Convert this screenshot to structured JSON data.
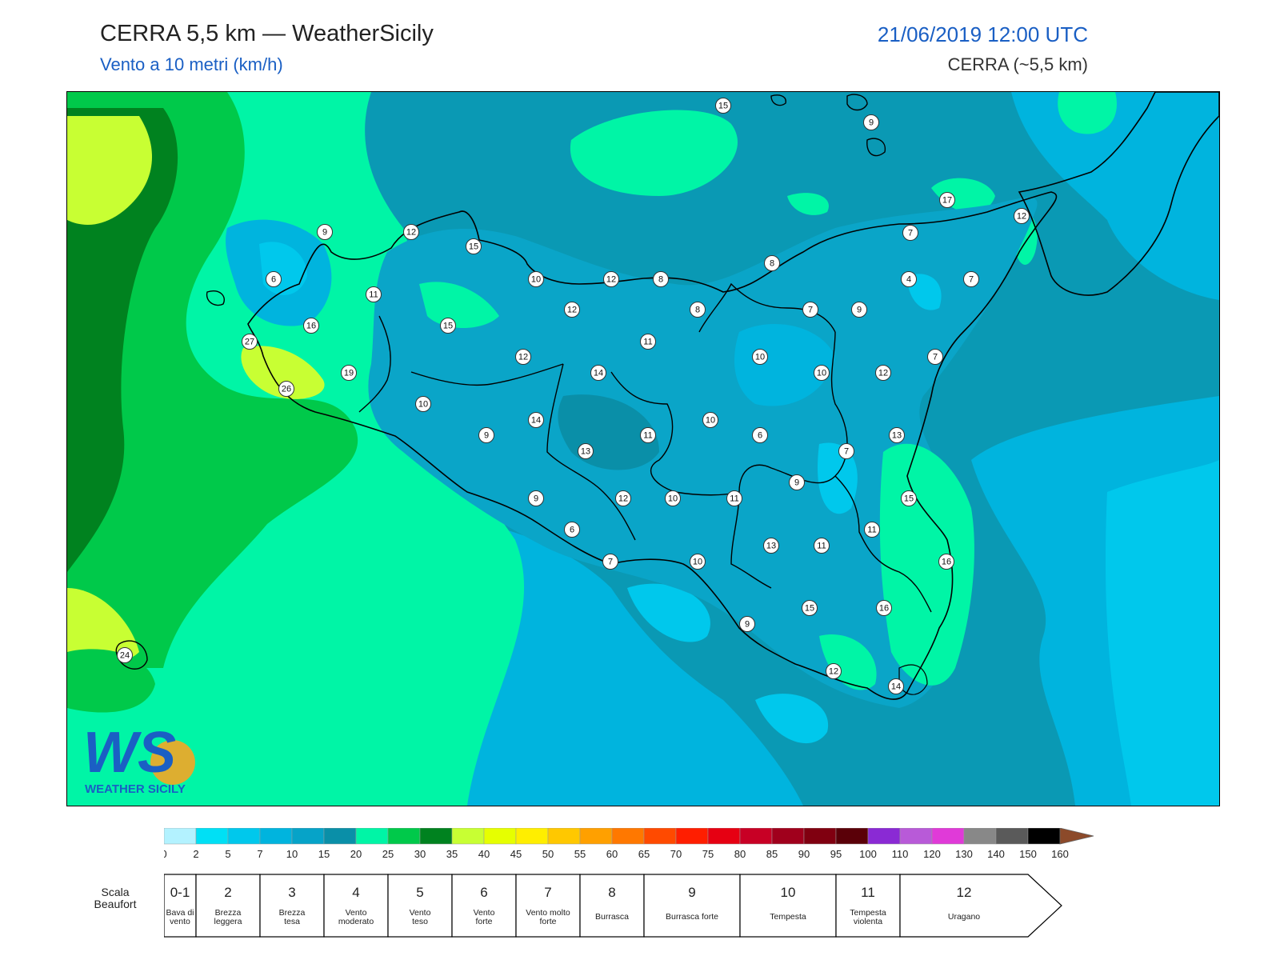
{
  "header": {
    "title": "CERRA 5,5 km — WeatherSicily",
    "subtitle": "Vento a 10 metri (km/h)",
    "datetime": "21/06/2019 12:00 UTC",
    "model": "CERRA (~5,5 km)"
  },
  "logo": {
    "letters": "WS",
    "name": "WEATHER SICILY"
  },
  "colorbar": {
    "ticks": [
      "0",
      "2",
      "5",
      "7",
      "10",
      "15",
      "20",
      "25",
      "30",
      "35",
      "40",
      "45",
      "50",
      "55",
      "60",
      "65",
      "70",
      "75",
      "80",
      "85",
      "90",
      "95",
      "100",
      "110",
      "120",
      "130",
      "140",
      "150",
      "160"
    ],
    "colors": [
      "#b3f2ff",
      "#00e0f5",
      "#00c8ec",
      "#00b4de",
      "#06a3c8",
      "#0a8fa8",
      "#00f5a6",
      "#00c94a",
      "#00821f",
      "#c8ff33",
      "#e6ff00",
      "#ffee00",
      "#ffc800",
      "#ffa000",
      "#ff7800",
      "#ff4a00",
      "#ff1e00",
      "#e60012",
      "#c80025",
      "#a0001c",
      "#800010",
      "#5a0008",
      "#8a2ad4",
      "#b85ad8",
      "#e03ad8",
      "#888888",
      "#5a5a5a",
      "#000000",
      "#8c4a2a",
      "#c8824a"
    ]
  },
  "beaufort": {
    "label": "Scala Beaufort",
    "classes": [
      {
        "num": "0-1",
        "desc": "Bava di vento"
      },
      {
        "num": "2",
        "desc": "Brezza leggera"
      },
      {
        "num": "3",
        "desc": "Brezza tesa"
      },
      {
        "num": "4",
        "desc": "Vento moderato"
      },
      {
        "num": "5",
        "desc": "Vento teso"
      },
      {
        "num": "6",
        "desc": "Vento forte"
      },
      {
        "num": "7",
        "desc": "Vento molto forte"
      },
      {
        "num": "8",
        "desc": "Burrasca"
      },
      {
        "num": "9",
        "desc": "Burrasca forte"
      },
      {
        "num": "10",
        "desc": "Tempesta"
      },
      {
        "num": "11",
        "desc": "Tempesta violenta"
      },
      {
        "num": "12",
        "desc": "Uragano"
      }
    ]
  },
  "stations": [
    {
      "v": "15"
    },
    {
      "v": "9"
    },
    {
      "v": "17"
    },
    {
      "v": "12"
    },
    {
      "v": "9"
    },
    {
      "v": "12"
    },
    {
      "v": "15"
    },
    {
      "v": "6"
    },
    {
      "v": "11"
    },
    {
      "v": "16"
    },
    {
      "v": "15"
    },
    {
      "v": "10"
    },
    {
      "v": "12"
    },
    {
      "v": "8"
    },
    {
      "v": "12"
    },
    {
      "v": "8"
    },
    {
      "v": "7"
    },
    {
      "v": "4"
    },
    {
      "v": "7"
    },
    {
      "v": "8"
    },
    {
      "v": "7"
    },
    {
      "v": "9"
    },
    {
      "v": "27"
    },
    {
      "v": "19"
    },
    {
      "v": "26"
    },
    {
      "v": "12"
    },
    {
      "v": "14"
    },
    {
      "v": "11"
    },
    {
      "v": "10"
    },
    {
      "v": "10"
    },
    {
      "v": "12"
    },
    {
      "v": "7"
    },
    {
      "v": "10"
    },
    {
      "v": "9"
    },
    {
      "v": "14"
    },
    {
      "v": "11"
    },
    {
      "v": "10"
    },
    {
      "v": "6"
    },
    {
      "v": "13"
    },
    {
      "v": "13"
    },
    {
      "v": "7"
    },
    {
      "v": "9"
    },
    {
      "v": "9"
    },
    {
      "v": "12"
    },
    {
      "v": "10"
    },
    {
      "v": "11"
    },
    {
      "v": "15"
    },
    {
      "v": "6"
    },
    {
      "v": "11"
    },
    {
      "v": "7"
    },
    {
      "v": "10"
    },
    {
      "v": "13"
    },
    {
      "v": "11"
    },
    {
      "v": "16"
    },
    {
      "v": "9"
    },
    {
      "v": "15"
    },
    {
      "v": "16"
    },
    {
      "v": "12"
    },
    {
      "v": "14"
    },
    {
      "v": "24"
    }
  ]
}
